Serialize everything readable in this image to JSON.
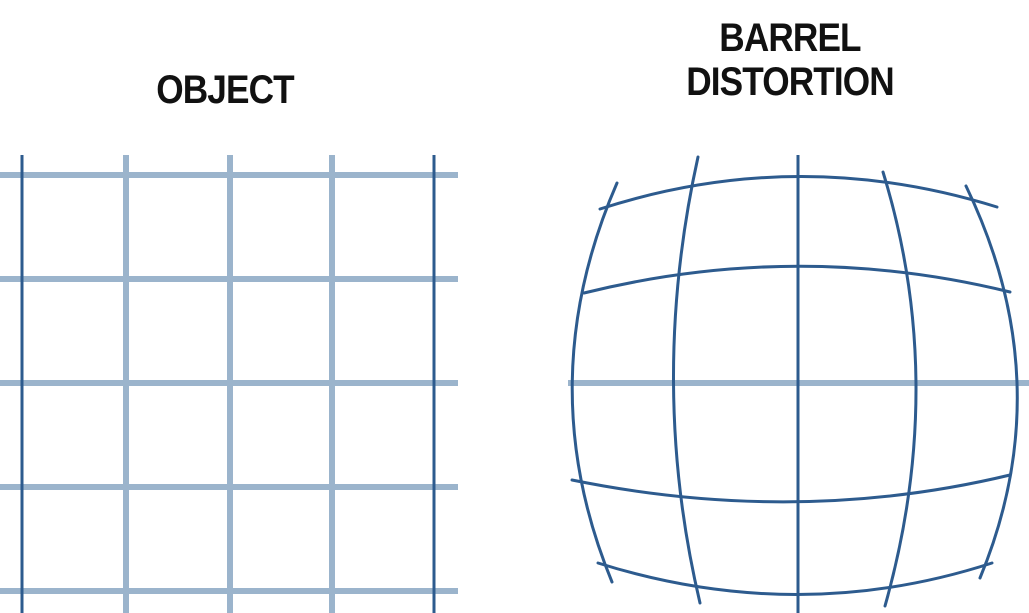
{
  "labels": {
    "object": "OBJECT",
    "barrel_line1": "BARREL",
    "barrel_line2": "DISTORTION"
  },
  "colors": {
    "light_line": "#9bb4cc",
    "dark_line": "#2d5b8e",
    "text": "#111111",
    "background": "#ffffff"
  }
}
